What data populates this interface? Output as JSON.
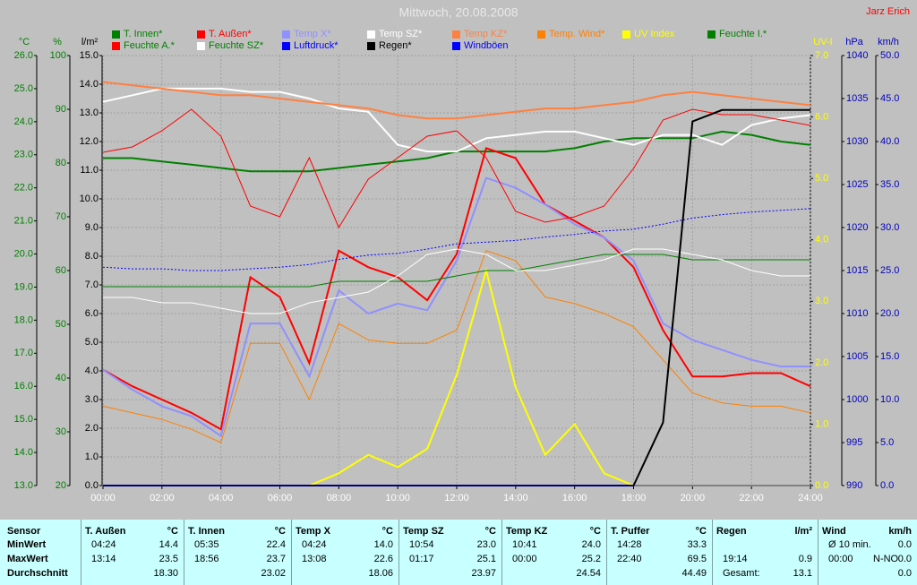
{
  "chart_data": {
    "type": "line",
    "title": "Mittwoch, 20.08.2008",
    "author": "Jarz Erich",
    "x": [
      0,
      1,
      2,
      3,
      4,
      5,
      6,
      7,
      8,
      9,
      10,
      11,
      12,
      13,
      14,
      15,
      16,
      17,
      18,
      19,
      20,
      21,
      22,
      23,
      24
    ],
    "xlim": [
      0,
      24
    ],
    "xticks": [
      {
        "value": 0,
        "label": "00:00"
      },
      {
        "value": 2,
        "label": "02:00"
      },
      {
        "value": 4,
        "label": "04:00"
      },
      {
        "value": 6,
        "label": "06:00"
      },
      {
        "value": 8,
        "label": "08:00"
      },
      {
        "value": 10,
        "label": "10:00"
      },
      {
        "value": 12,
        "label": "12:00"
      },
      {
        "value": 14,
        "label": "14:00"
      },
      {
        "value": 16,
        "label": "16:00"
      },
      {
        "value": 18,
        "label": "18:00"
      },
      {
        "value": 20,
        "label": "20:00"
      },
      {
        "value": 22,
        "label": "22:00"
      },
      {
        "value": 24,
        "label": "24:00"
      }
    ],
    "grid": true,
    "axes": [
      {
        "id": "c",
        "title": "°C",
        "side": "left",
        "color": "#008000",
        "ylim": [
          13,
          26
        ],
        "yticks": [
          {
            "value": 13,
            "label": "13.0"
          },
          {
            "value": 14,
            "label": "14.0"
          },
          {
            "value": 15,
            "label": "15.0"
          },
          {
            "value": 16,
            "label": "16.0"
          },
          {
            "value": 17,
            "label": "17.0"
          },
          {
            "value": 18,
            "label": "18.0"
          },
          {
            "value": 19,
            "label": "19.0"
          },
          {
            "value": 20,
            "label": "20.0"
          },
          {
            "value": 21,
            "label": "21.0"
          },
          {
            "value": 22,
            "label": "22.0"
          },
          {
            "value": 23,
            "label": "23.0"
          },
          {
            "value": 24,
            "label": "24.0"
          },
          {
            "value": 25,
            "label": "25.0"
          },
          {
            "value": 26,
            "label": "26.0"
          }
        ]
      },
      {
        "id": "pct",
        "title": "%",
        "side": "left",
        "color": "#008000",
        "ylim": [
          20,
          100
        ],
        "yticks": [
          20,
          30,
          40,
          50,
          60,
          70,
          80,
          90,
          100
        ]
      },
      {
        "id": "rain",
        "title": "l/m²",
        "side": "left",
        "color": "#000000",
        "primary": true,
        "ylim": [
          0,
          15
        ],
        "yticks": [
          {
            "value": 0,
            "label": "0.0"
          },
          {
            "value": 1,
            "label": "1.0"
          },
          {
            "value": 2,
            "label": "2.0"
          },
          {
            "value": 3,
            "label": "3.0"
          },
          {
            "value": 4,
            "label": "4.0"
          },
          {
            "value": 5,
            "label": "5.0"
          },
          {
            "value": 6,
            "label": "6.0"
          },
          {
            "value": 7,
            "label": "7.0"
          },
          {
            "value": 8,
            "label": "8.0"
          },
          {
            "value": 9,
            "label": "9.0"
          },
          {
            "value": 10,
            "label": "10.0"
          },
          {
            "value": 11,
            "label": "11.0"
          },
          {
            "value": 12,
            "label": "12.0"
          },
          {
            "value": 13,
            "label": "13.0"
          },
          {
            "value": 14,
            "label": "14.0"
          },
          {
            "value": 15,
            "label": "15.0"
          }
        ]
      },
      {
        "id": "uv",
        "title": "UV-I",
        "side": "right",
        "color": "#ffff00",
        "ylim": [
          0,
          7
        ],
        "yticks": [
          {
            "value": 0,
            "label": "0.0"
          },
          {
            "value": 1,
            "label": "1.0"
          },
          {
            "value": 2,
            "label": "2.0"
          },
          {
            "value": 3,
            "label": "3.0"
          },
          {
            "value": 4,
            "label": "4.0"
          },
          {
            "value": 5,
            "label": "5.0"
          },
          {
            "value": 6,
            "label": "6.0"
          },
          {
            "value": 7,
            "label": "7.0"
          }
        ]
      },
      {
        "id": "hpa",
        "title": "hPa",
        "side": "right",
        "color": "#0000c0",
        "ylim": [
          990,
          1040
        ],
        "yticks": [
          990,
          995,
          1000,
          1005,
          1010,
          1015,
          1020,
          1025,
          1030,
          1035,
          1040
        ]
      },
      {
        "id": "kmh",
        "title": "km/h",
        "side": "right",
        "color": "#0000c0",
        "ylim": [
          0,
          50
        ],
        "yticks": [
          {
            "value": 0,
            "label": "0.0"
          },
          {
            "value": 5,
            "label": "5.0"
          },
          {
            "value": 10,
            "label": "10.0"
          },
          {
            "value": 15,
            "label": "15.0"
          },
          {
            "value": 20,
            "label": "20.0"
          },
          {
            "value": 25,
            "label": "25.0"
          },
          {
            "value": 30,
            "label": "30.0"
          },
          {
            "value": 35,
            "label": "35.0"
          },
          {
            "value": 40,
            "label": "40.0"
          },
          {
            "value": 45,
            "label": "45.0"
          },
          {
            "value": 50,
            "label": "50.0"
          }
        ]
      }
    ],
    "series": [
      {
        "name": "T. Innen*",
        "color": "#008000",
        "axis": "c",
        "width": 2,
        "values": [
          22.9,
          22.9,
          22.8,
          22.7,
          22.6,
          22.5,
          22.5,
          22.5,
          22.6,
          22.7,
          22.8,
          22.9,
          23.1,
          23.1,
          23.1,
          23.1,
          23.2,
          23.4,
          23.5,
          23.5,
          23.5,
          23.7,
          23.6,
          23.4,
          23.3
        ]
      },
      {
        "name": "T. Außen*",
        "color": "#ff0000",
        "axis": "c",
        "width": 2,
        "values": [
          16.5,
          16.0,
          15.6,
          15.2,
          14.7,
          19.3,
          18.7,
          16.7,
          20.1,
          19.6,
          19.3,
          18.6,
          20.0,
          23.2,
          22.9,
          21.5,
          21.0,
          20.5,
          19.6,
          17.7,
          16.3,
          16.3,
          16.4,
          16.4,
          16.0
        ]
      },
      {
        "name": "Temp X*",
        "color": "#9090ff",
        "axis": "c",
        "width": 2,
        "values": [
          16.5,
          15.9,
          15.4,
          15.1,
          14.5,
          17.9,
          17.9,
          16.3,
          18.9,
          18.2,
          18.5,
          18.3,
          19.8,
          22.3,
          22.0,
          21.5,
          20.9,
          20.5,
          19.8,
          17.9,
          17.4,
          17.1,
          16.8,
          16.6,
          16.6
        ]
      },
      {
        "name": "Temp SZ*",
        "color": "#ffffff",
        "axis": "c",
        "width": 2,
        "values": [
          24.6,
          24.8,
          25.0,
          25.0,
          25.0,
          24.9,
          24.9,
          24.7,
          24.4,
          24.3,
          23.3,
          23.1,
          23.1,
          23.5,
          23.6,
          23.7,
          23.7,
          23.5,
          23.3,
          23.6,
          23.6,
          23.3,
          23.9,
          24.1,
          24.2
        ]
      },
      {
        "name": "Temp KZ*",
        "color": "#ff8040",
        "axis": "c",
        "width": 2,
        "values": [
          25.2,
          25.1,
          25.0,
          24.9,
          24.8,
          24.8,
          24.7,
          24.6,
          24.5,
          24.4,
          24.2,
          24.1,
          24.1,
          24.2,
          24.3,
          24.4,
          24.4,
          24.5,
          24.6,
          24.8,
          24.9,
          24.8,
          24.7,
          24.6,
          24.5
        ]
      },
      {
        "name": "Temp. Wind*",
        "color": "#ff8000",
        "axis": "c",
        "width": 1,
        "values": [
          15.4,
          15.2,
          15.0,
          14.7,
          14.3,
          17.3,
          17.3,
          15.6,
          17.9,
          17.4,
          17.3,
          17.3,
          17.7,
          20.1,
          19.8,
          18.7,
          18.5,
          18.2,
          17.8,
          16.8,
          15.8,
          15.5,
          15.4,
          15.4,
          15.2
        ]
      },
      {
        "name": "UV Index",
        "color": "#ffff00",
        "axis": "uv",
        "width": 2,
        "values": [
          0,
          0,
          0,
          0,
          0,
          0,
          0,
          0,
          0.2,
          0.5,
          0.3,
          0.6,
          1.8,
          3.5,
          1.6,
          0.5,
          1.0,
          0.2,
          0,
          0,
          0,
          0,
          0,
          0,
          0
        ]
      },
      {
        "name": "Feuchte I.*",
        "color": "#008000",
        "axis": "pct",
        "width": 1,
        "values": [
          57,
          57,
          57,
          57,
          57,
          57,
          57,
          57,
          58,
          58,
          58,
          58,
          59,
          60,
          60,
          61,
          62,
          63,
          63,
          63,
          62,
          62,
          62,
          62,
          62
        ]
      },
      {
        "name": "Feuchte A.*",
        "color": "#ff0000",
        "label_color": "#008000",
        "axis": "pct",
        "width": 1,
        "values": [
          82,
          83,
          86,
          90,
          85,
          72,
          70,
          81,
          68,
          77,
          81,
          85,
          86,
          81,
          71,
          69,
          70,
          72,
          79,
          88,
          90,
          89,
          89,
          88,
          87
        ]
      },
      {
        "name": "Feuchte SZ*",
        "color": "#ffffff",
        "label_color": "#008000",
        "axis": "pct",
        "width": 1,
        "values": [
          55,
          55,
          54,
          54,
          53,
          52,
          52,
          54,
          55,
          56,
          59,
          63,
          64,
          63,
          60,
          60,
          61,
          62,
          64,
          64,
          63,
          62,
          60,
          59,
          59
        ]
      },
      {
        "name": "Luftdruck*",
        "color": "#0000ff",
        "axis": "hpa",
        "width": 1,
        "dash": true,
        "values": [
          1015.4,
          1015.2,
          1015.2,
          1015.0,
          1015.0,
          1015.2,
          1015.4,
          1015.7,
          1016.3,
          1016.8,
          1017.0,
          1017.5,
          1018.1,
          1018.3,
          1018.5,
          1018.9,
          1019.2,
          1019.6,
          1019.8,
          1020.4,
          1021.1,
          1021.5,
          1021.8,
          1022.0,
          1022.2
        ]
      },
      {
        "name": "Regen*",
        "color": "#000000",
        "axis": "rain",
        "width": 2,
        "values": [
          0,
          0,
          0,
          0,
          0,
          0,
          0,
          0,
          0,
          0,
          0,
          0,
          0,
          0,
          0,
          0,
          0,
          0,
          0,
          2.2,
          12.7,
          13.1,
          13.1,
          13.1,
          13.1
        ]
      },
      {
        "name": "Windböen",
        "color": "#0000ff",
        "axis": "kmh",
        "width": 1,
        "values": [
          0,
          0,
          0,
          0,
          0,
          0,
          0,
          0,
          0,
          0,
          0,
          0,
          0,
          0,
          0,
          0,
          0,
          0,
          0,
          0,
          0,
          0,
          0,
          0,
          0
        ]
      }
    ]
  },
  "table": {
    "header": "Sensor",
    "columns": [
      {
        "name": "T. Außen",
        "unit": "°C"
      },
      {
        "name": "T. Innen",
        "unit": "°C"
      },
      {
        "name": "Temp X",
        "unit": "°C"
      },
      {
        "name": "Temp SZ",
        "unit": "°C"
      },
      {
        "name": "Temp KZ",
        "unit": "°C"
      },
      {
        "name": "T. Puffer",
        "unit": "°C"
      },
      {
        "name": "Regen",
        "unit": "l/m²"
      },
      {
        "name": "Wind",
        "unit": "km/h"
      }
    ],
    "rows": [
      {
        "label": "MinWert",
        "cells": [
          [
            "04:24",
            null,
            "14.4"
          ],
          [
            "05:35",
            null,
            "22.4"
          ],
          [
            "04:24",
            null,
            "14.0"
          ],
          [
            "10:54",
            null,
            "23.0"
          ],
          [
            "10:41",
            null,
            "24.0"
          ],
          [
            "14:28",
            null,
            "33.3"
          ],
          [
            null,
            null,
            null
          ],
          [
            "Ø 10 min.",
            null,
            "0.0"
          ]
        ]
      },
      {
        "label": "MaxWert",
        "cells": [
          [
            "13:14",
            null,
            "23.5"
          ],
          [
            "18:56",
            null,
            "23.7"
          ],
          [
            "13:08",
            null,
            "22.6"
          ],
          [
            "01:17",
            null,
            "25.1"
          ],
          [
            "00:00",
            null,
            "25.2"
          ],
          [
            "22:40",
            null,
            "69.5"
          ],
          [
            "19:14",
            null,
            "0.9"
          ],
          [
            "00:00",
            "N-NO",
            "0.0"
          ]
        ]
      },
      {
        "label": "Durchschnitt",
        "cells": [
          [
            null,
            null,
            "18.30"
          ],
          [
            null,
            null,
            "23.02"
          ],
          [
            null,
            null,
            "18.06"
          ],
          [
            null,
            null,
            "23.97"
          ],
          [
            null,
            null,
            "24.54"
          ],
          [
            null,
            null,
            "44.49"
          ],
          [
            "Gesamt:",
            null,
            "13.1"
          ],
          [
            null,
            null,
            "0.0"
          ]
        ]
      }
    ]
  }
}
